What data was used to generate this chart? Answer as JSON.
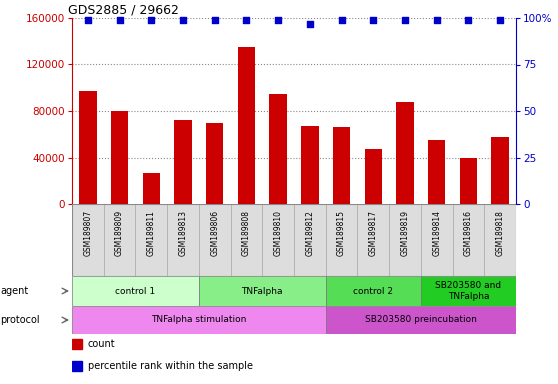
{
  "title": "GDS2885 / 29662",
  "samples": [
    "GSM189807",
    "GSM189809",
    "GSM189811",
    "GSM189813",
    "GSM189806",
    "GSM189808",
    "GSM189810",
    "GSM189812",
    "GSM189815",
    "GSM189817",
    "GSM189819",
    "GSM189814",
    "GSM189816",
    "GSM189818"
  ],
  "counts": [
    97000,
    80000,
    27000,
    72000,
    70000,
    135000,
    95000,
    67000,
    66000,
    47000,
    88000,
    55000,
    40000,
    58000
  ],
  "percentile": [
    99,
    99,
    99,
    99,
    99,
    99,
    99,
    97,
    99,
    99,
    99,
    99,
    99,
    99
  ],
  "ylim_left": [
    0,
    160000
  ],
  "ylim_right": [
    0,
    100
  ],
  "yticks_left": [
    0,
    40000,
    80000,
    120000,
    160000
  ],
  "yticks_right": [
    0,
    25,
    50,
    75,
    100
  ],
  "bar_color": "#CC0000",
  "dot_color": "#0000CC",
  "agent_groups": [
    {
      "label": "control 1",
      "start": 0,
      "end": 4,
      "color": "#ccffcc"
    },
    {
      "label": "TNFalpha",
      "start": 4,
      "end": 8,
      "color": "#88ee88"
    },
    {
      "label": "control 2",
      "start": 8,
      "end": 11,
      "color": "#55dd55"
    },
    {
      "label": "SB203580 and\nTNFalpha",
      "start": 11,
      "end": 14,
      "color": "#22cc22"
    }
  ],
  "protocol_groups": [
    {
      "label": "TNFalpha stimulation",
      "start": 0,
      "end": 8,
      "color": "#ee88ee"
    },
    {
      "label": "SB203580 preincubation",
      "start": 8,
      "end": 14,
      "color": "#cc55cc"
    }
  ],
  "legend_items": [
    {
      "color": "#CC0000",
      "label": "count"
    },
    {
      "color": "#0000CC",
      "label": "percentile rank within the sample"
    }
  ],
  "bg_color": "#ffffff",
  "grid_color": "#888888",
  "label_bg": "#dddddd"
}
